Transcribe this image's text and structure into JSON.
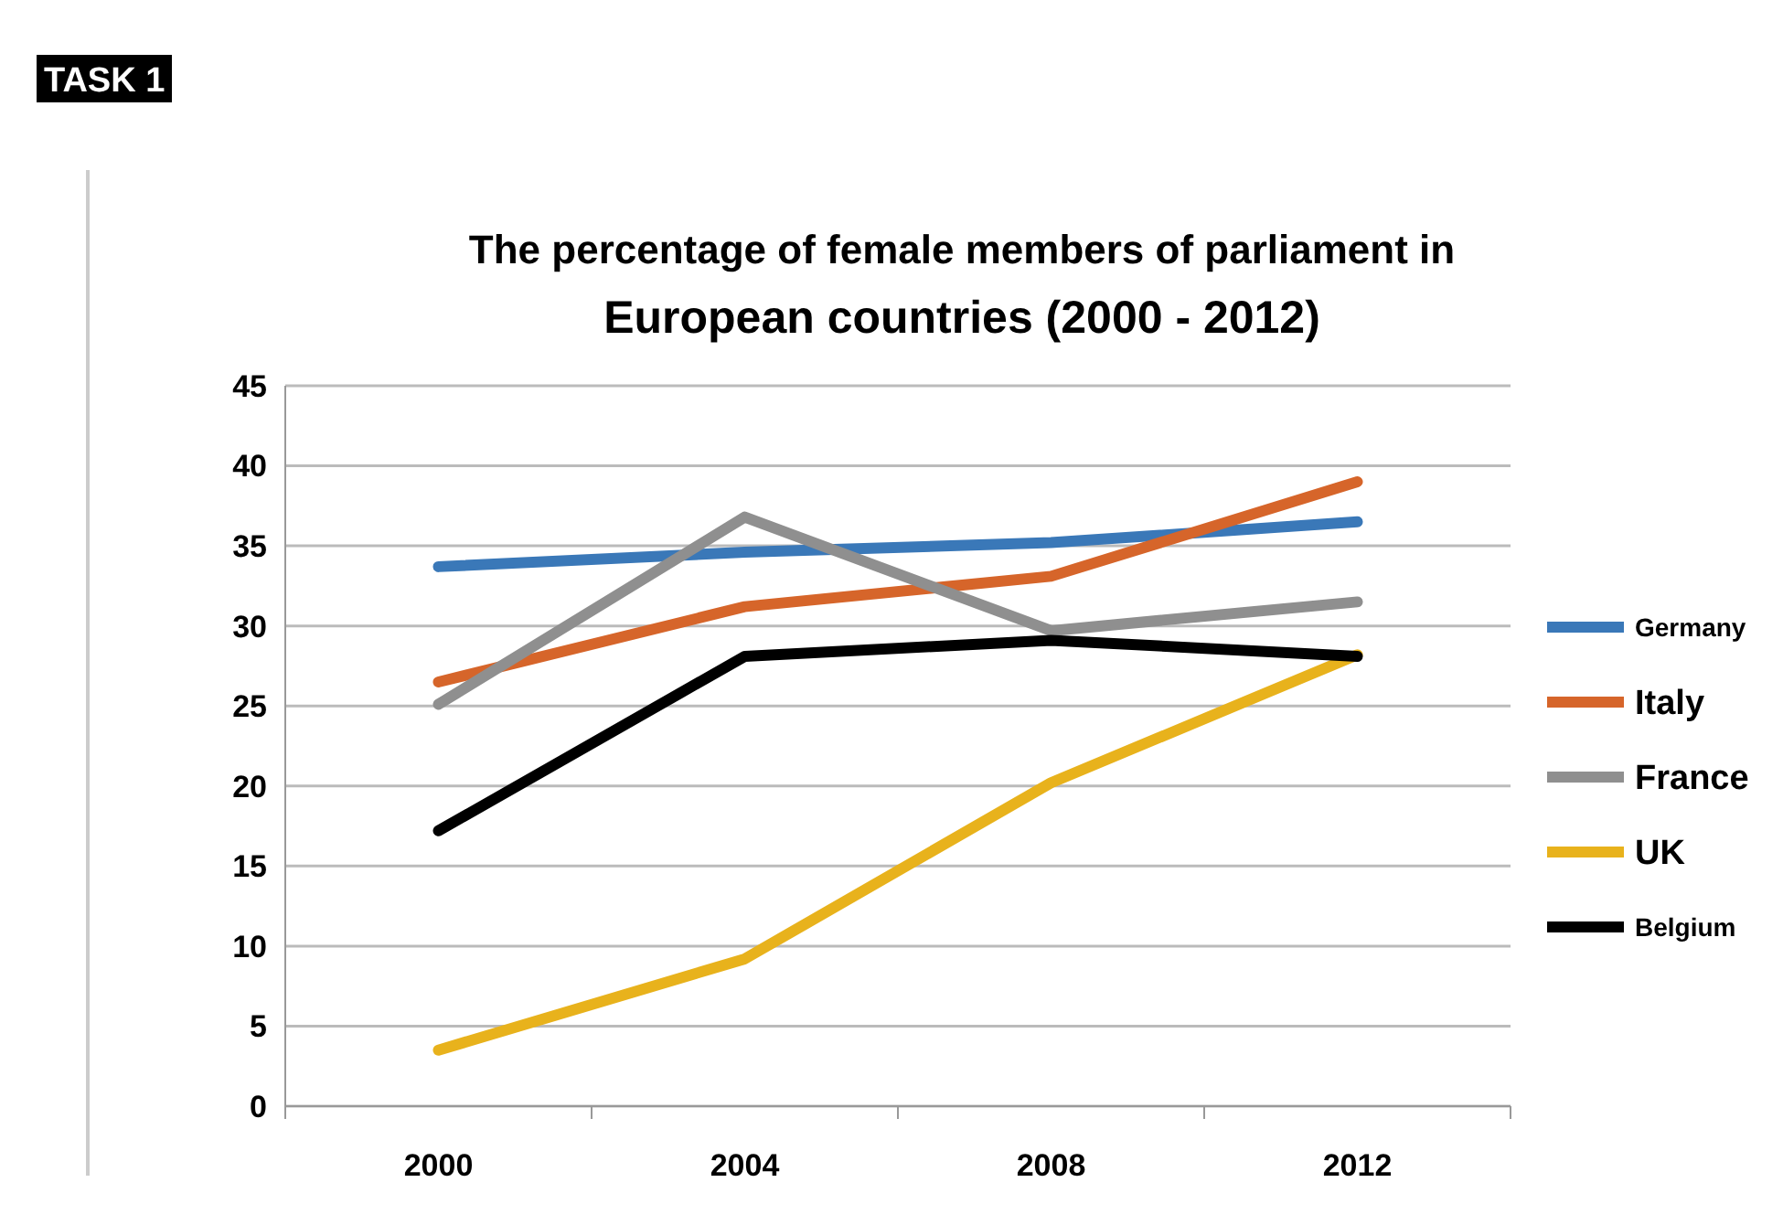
{
  "chart_data": {
    "type": "line",
    "title": "The percentage of female members of parliament in",
    "subtitle": "European countries (2000 - 2012)",
    "annotations": [
      "TASK 1"
    ],
    "categories": [
      "2000",
      "2004",
      "2008",
      "2012"
    ],
    "series": [
      {
        "name": "Germany",
        "color": "#3a78b8",
        "values": [
          33.7,
          34.6,
          35.2,
          36.5
        ]
      },
      {
        "name": "Italy",
        "color": "#d6652a",
        "values": [
          26.5,
          31.2,
          33.1,
          39
        ]
      },
      {
        "name": "France",
        "color": "#8f8f8f",
        "values": [
          25.1,
          36.8,
          29.7,
          31.5
        ]
      },
      {
        "name": "UK",
        "color": "#e8b21c",
        "values": [
          3.5,
          9.2,
          20.2,
          28.2
        ]
      },
      {
        "name": "Belgium",
        "color": "#000000",
        "values": [
          17.2,
          28.1,
          29.1,
          28.1
        ]
      }
    ],
    "ylim": [
      0,
      45
    ],
    "yticks": [
      0,
      5,
      10,
      15,
      20,
      25,
      30,
      35,
      40,
      45
    ],
    "grid": "y",
    "legend": "right",
    "marker": "none",
    "line_style": "solid"
  }
}
